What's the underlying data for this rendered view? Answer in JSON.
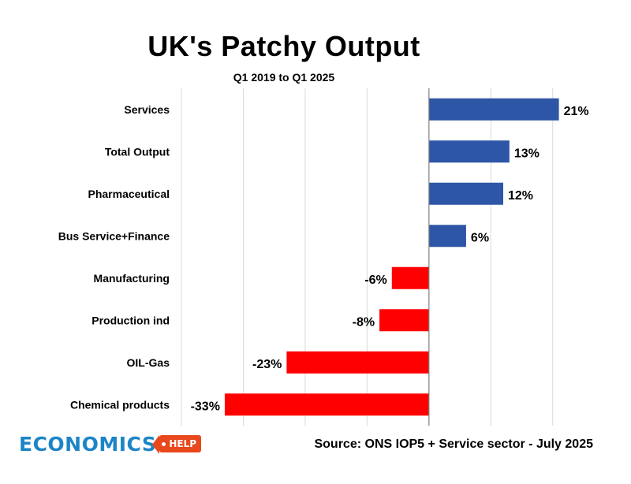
{
  "chart_data": {
    "type": "bar",
    "orientation": "horizontal",
    "title": "UK's Patchy Output",
    "subtitle": "Q1 2019 to Q1 2025",
    "categories": [
      "Services",
      "Total Output",
      "Pharmaceutical",
      "Bus Service+Finance",
      "Manufacturing",
      "Production ind",
      "OIL-Gas",
      "Chemical products"
    ],
    "values": [
      21,
      13,
      12,
      6,
      -6,
      -8,
      -23,
      -33
    ],
    "data_labels": [
      "21%",
      "13%",
      "12%",
      "6%",
      "-6%",
      "-8%",
      "-23%",
      "-33%"
    ],
    "unit": "%",
    "xlim": [
      -40,
      25
    ],
    "grid": true,
    "colors": {
      "positive": "#2e56a6",
      "negative": "#ff0000"
    },
    "xlabel": "",
    "ylabel": ""
  },
  "source_text": "Source: ONS  IOP5 + Service sector - July 2025",
  "logo": {
    "word": "ECONOMICS",
    "tag": "HELP",
    "word_color": "#1d85c7",
    "tag_color": "#e8481c"
  }
}
